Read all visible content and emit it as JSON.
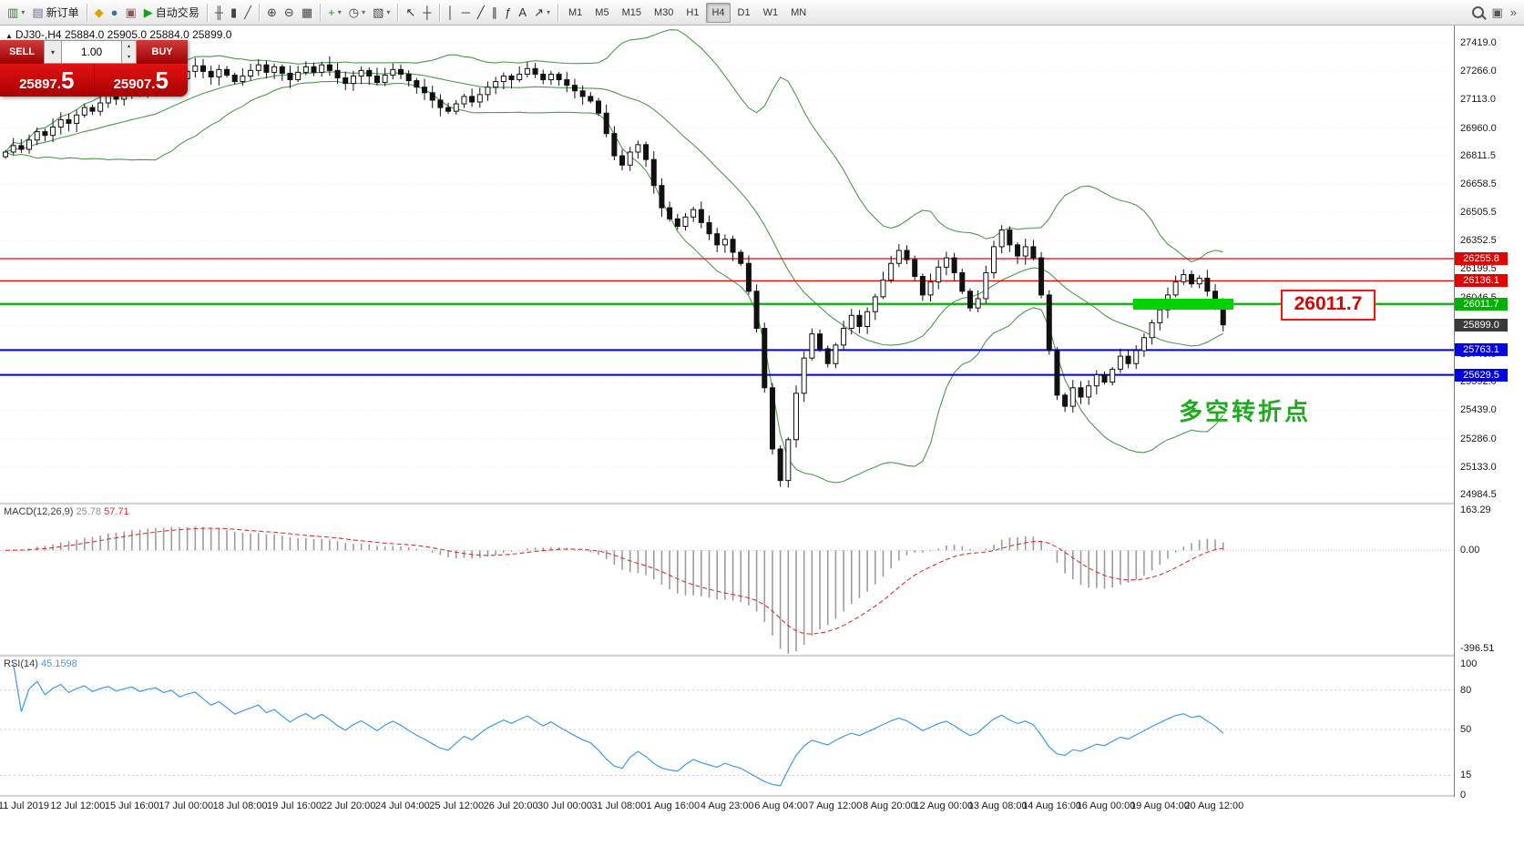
{
  "toolbar": {
    "groups": [
      {
        "items": [
          {
            "name": "new-chart",
            "glyph": "▥",
            "color": "#3a7d3a",
            "caret": true
          },
          {
            "name": "new-order",
            "glyph": "▤",
            "color": "#6a6a9a",
            "label": "新订单"
          }
        ]
      },
      {
        "items": [
          {
            "name": "market-watch",
            "glyph": "◆",
            "color": "#d9a400"
          },
          {
            "name": "navigator",
            "glyph": "●",
            "color": "#3a6ea5"
          },
          {
            "name": "terminal",
            "glyph": "▣",
            "color": "#8a5a5a"
          },
          {
            "name": "autotrading",
            "glyph": "▶",
            "color": "#18a018",
            "label": "自动交易"
          }
        ]
      },
      {
        "items": [
          {
            "name": "bar-chart",
            "glyph": "╫",
            "color": "#444444"
          },
          {
            "name": "candlestick-chart",
            "glyph": "▮",
            "color": "#444444"
          },
          {
            "name": "line-chart",
            "glyph": "╱",
            "color": "#444444"
          }
        ]
      },
      {
        "items": [
          {
            "name": "zoom-in",
            "glyph": "⊕",
            "color": "#444444"
          },
          {
            "name": "zoom-out",
            "glyph": "⊖",
            "color": "#444444"
          },
          {
            "name": "grid",
            "glyph": "▦",
            "color": "#444444"
          }
        ]
      },
      {
        "items": [
          {
            "name": "indicators",
            "glyph": "+",
            "color": "#18a018",
            "caret": true
          },
          {
            "name": "periods",
            "glyph": "◷",
            "color": "#444444",
            "caret": true
          },
          {
            "name": "templates",
            "glyph": "▧",
            "color": "#444444",
            "caret": true
          }
        ]
      },
      {
        "items": [
          {
            "name": "cursor",
            "glyph": "↖",
            "color": "#333333"
          },
          {
            "name": "crosshair",
            "glyph": "┼",
            "color": "#333333"
          }
        ]
      },
      {
        "items": [
          {
            "name": "vertical-line",
            "glyph": "│",
            "color": "#333333"
          },
          {
            "name": "horizontal-line",
            "glyph": "─",
            "color": "#333333"
          },
          {
            "name": "trendline",
            "glyph": "╱",
            "color": "#333333"
          },
          {
            "name": "equidistant-channel",
            "glyph": "∥",
            "color": "#333333"
          },
          {
            "name": "fibonacci",
            "glyph": "ƒ",
            "color": "#333333"
          },
          {
            "name": "text",
            "glyph": "A",
            "color": "#333333"
          },
          {
            "name": "arrows",
            "glyph": "↗",
            "color": "#333333",
            "caret": true
          }
        ]
      }
    ],
    "timeframes": [
      "M1",
      "M5",
      "M15",
      "M30",
      "H1",
      "H4",
      "D1",
      "W1",
      "MN"
    ],
    "active_timeframe": "H4",
    "right_icons": [
      {
        "name": "search",
        "css": "search-ic"
      },
      {
        "name": "new-window",
        "glyph": "▣",
        "color": "#555555"
      },
      {
        "name": "overflow",
        "glyph": "»",
        "color": "#555555"
      }
    ]
  },
  "chart": {
    "title": "DJ30-,H4",
    "ohlc_text": "25884.0 25905.0 25884.0 25899.0"
  },
  "trade_panel": {
    "sell_label": "SELL",
    "buy_label": "BUY",
    "volume": "1.00",
    "sell_price_main": "25897.",
    "sell_price_big": "5",
    "buy_price_main": "25907.",
    "buy_price_big": "5"
  },
  "levels": [
    {
      "label": "26255.8",
      "price": 26255.8,
      "color": "#e60000",
      "width": 1.3
    },
    {
      "label": "26136.1",
      "price": 26136.1,
      "color": "#e60000",
      "width": 1.3
    },
    {
      "label": "26011.7",
      "price": 26011.7,
      "color": "#00b300",
      "width": 2.2
    },
    {
      "label": "25763.1",
      "price": 25763.1,
      "color": "#0000e6",
      "width": 2
    },
    {
      "label": "25629.5",
      "price": 25629.5,
      "color": "#0000e6",
      "width": 2
    }
  ],
  "current_price": {
    "label": "25899.0",
    "value": 25899.0,
    "color": "#3a3a3a"
  },
  "support_zone": {
    "color": "#00d300"
  },
  "callout": {
    "text": "26011.7"
  },
  "annotation": {
    "text": "多空转折点"
  },
  "main_axis": {
    "labels": [
      "27419.0",
      "27266.0",
      "27113.0",
      "26960.0",
      "26811.5",
      "26658.5",
      "26505.5",
      "26352.5",
      "26199.5",
      "26046.5",
      "25893.5",
      "25740.5",
      "25592.0",
      "25439.0",
      "25286.0",
      "25133.0",
      "24984.5"
    ]
  },
  "macd": {
    "label": "MACD(12,26,9)",
    "value1": "25.78",
    "value2": "57.71",
    "axis": [
      "163.29",
      "0.00",
      "-396.51"
    ]
  },
  "rsi": {
    "label": "RSI(14)",
    "value": "45.1598",
    "axis": [
      "100",
      "80",
      "50",
      "15",
      "0"
    ],
    "levels": [
      80,
      50,
      15
    ]
  },
  "x_axis_labels": [
    "11 Jul 2019",
    "12 Jul 12:00",
    "15 Jul 16:00",
    "17 Jul 00:00",
    "18 Jul 08:00",
    "19 Jul 16:00",
    "22 Jul 20:00",
    "24 Jul 04:00",
    "25 Jul 12:00",
    "26 Jul 20:00",
    "30 Jul 00:00",
    "31 Jul 08:00",
    "1 Aug 16:00",
    "4 Aug 23:00",
    "6 Aug 04:00",
    "7 Aug 12:00",
    "8 Aug 20:00",
    "12 Aug 00:00",
    "13 Aug 08:00",
    "14 Aug 16:00",
    "16 Aug 00:00",
    "19 Aug 04:00",
    "20 Aug 12:00"
  ],
  "chart_data": {
    "type": "candlestick",
    "symbol": "DJ30-",
    "timeframe": "H4",
    "ohlc_current": {
      "open": 25884.0,
      "high": 25905.0,
      "low": 25884.0,
      "close": 25899.0
    },
    "y_range": [
      24984.5,
      27419.0
    ],
    "indicators": [
      {
        "name": "Bollinger Bands",
        "period": 20,
        "deviation": 2
      },
      {
        "name": "MACD",
        "fast": 12,
        "slow": 26,
        "signal": 9,
        "values": [
          25.78,
          57.71
        ]
      },
      {
        "name": "RSI",
        "period": 14,
        "value": 45.1598
      }
    ],
    "closes": [
      26830,
      26865,
      26845,
      26895,
      26940,
      26920,
      26965,
      27005,
      26985,
      27030,
      27070,
      27050,
      27095,
      27135,
      27115,
      27155,
      27190,
      27170,
      27210,
      27235,
      27215,
      27255,
      27225,
      27265,
      27295,
      27265,
      27235,
      27275,
      27245,
      27210,
      27240,
      27270,
      27300,
      27260,
      27290,
      27255,
      27220,
      27260,
      27290,
      27260,
      27300,
      27270,
      27230,
      27200,
      27240,
      27270,
      27240,
      27205,
      27245,
      27275,
      27250,
      27215,
      27180,
      27150,
      27110,
      27070,
      27050,
      27090,
      27130,
      27100,
      27140,
      27180,
      27210,
      27240,
      27220,
      27250,
      27280,
      27250,
      27220,
      27250,
      27220,
      27190,
      27160,
      27130,
      27105,
      27040,
      26930,
      26810,
      26760,
      26830,
      26870,
      26790,
      26650,
      26530,
      26470,
      26430,
      26480,
      26520,
      26450,
      26390,
      26330,
      26360,
      26290,
      26230,
      26080,
      25880,
      25560,
      25230,
      25060,
      25280,
      25530,
      25720,
      25850,
      25770,
      25690,
      25790,
      25880,
      25950,
      25890,
      25970,
      26050,
      26140,
      26230,
      26300,
      26250,
      26160,
      26060,
      26130,
      26210,
      26260,
      26180,
      26080,
      25990,
      26040,
      26180,
      26320,
      26410,
      26330,
      26270,
      26320,
      26260,
      26060,
      25760,
      25520,
      25460,
      25560,
      25510,
      25570,
      25630,
      25590,
      25660,
      25730,
      25690,
      25760,
      25830,
      25910,
      25980,
      26060,
      26130,
      26170,
      26120,
      26150,
      26080,
      26010,
      25899
    ]
  }
}
